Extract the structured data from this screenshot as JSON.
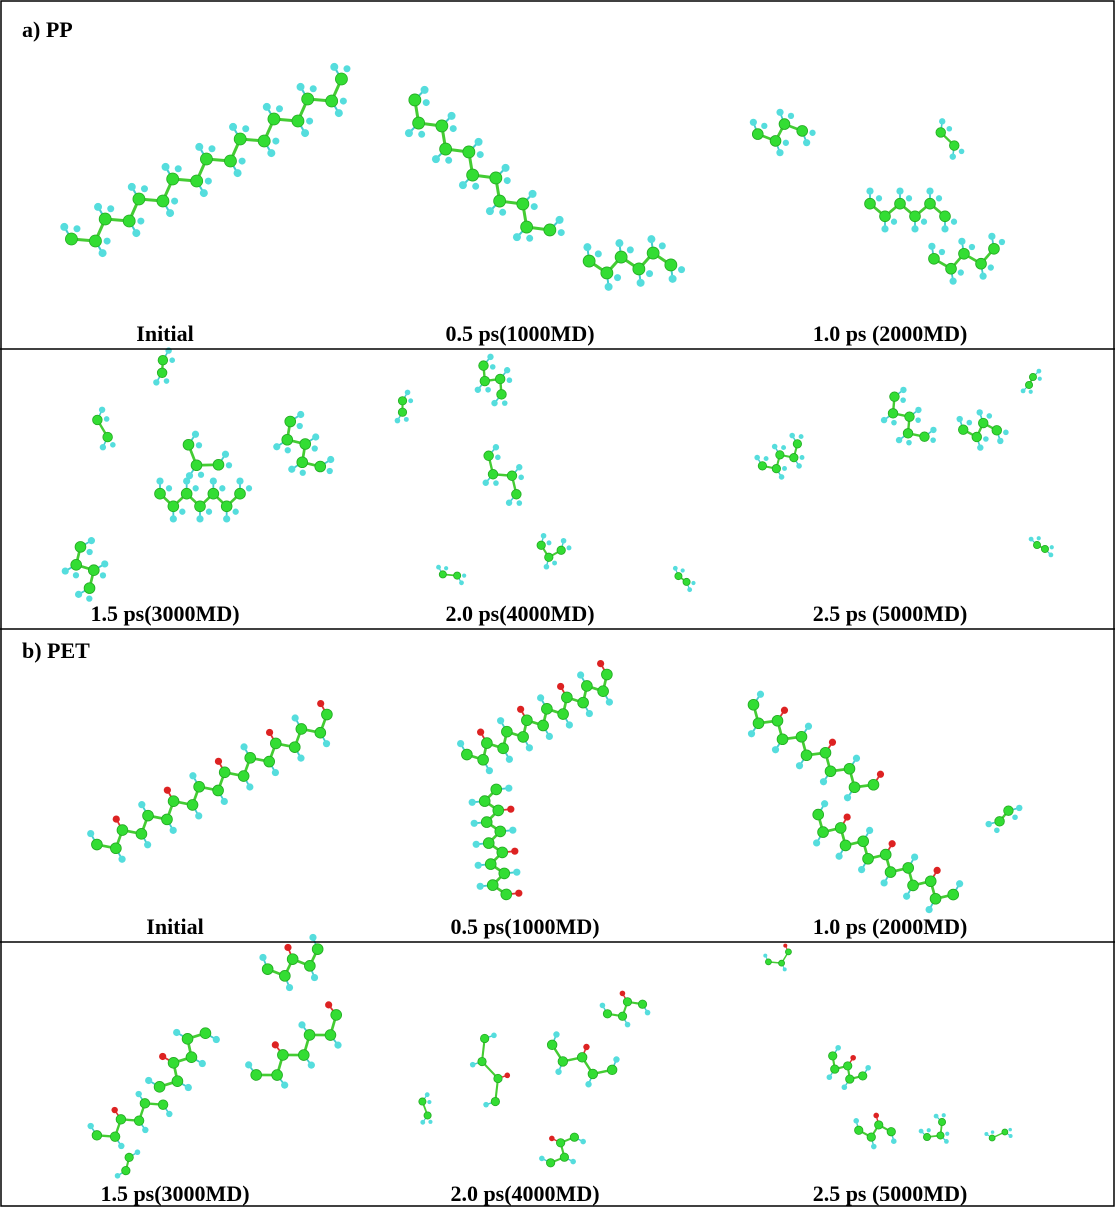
{
  "panels": [
    {
      "label": "a) PP",
      "rows": [
        [
          "Initial",
          "0.5 ps(1000MD)",
          "1.0 ps (2000MD)"
        ],
        [
          "1.5 ps(3000MD)",
          "2.0 ps(4000MD)",
          "2.5 ps (5000MD)"
        ]
      ]
    },
    {
      "label": "b) PET",
      "rows": [
        [
          "Initial",
          "0.5 ps(1000MD)",
          "1.0 ps (2000MD)"
        ],
        [
          "1.5 ps(3000MD)",
          "2.0 ps(4000MD)",
          "2.5 ps (5000MD)"
        ]
      ]
    }
  ]
}
